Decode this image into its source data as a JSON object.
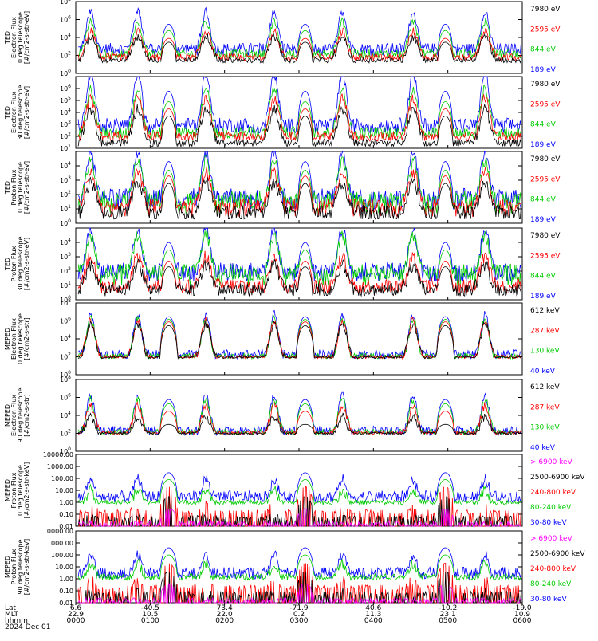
{
  "chart_data": [
    {
      "type": "line",
      "ylabel": [
        "TED",
        "Electron Flux",
        "0 deg telescope",
        "[#/cm2-s-str-eV]"
      ],
      "yscale": "log",
      "ylim": [
        1,
        100000000
      ],
      "ticks": [
        {
          "b": "10",
          "e": "0"
        },
        {
          "b": "10",
          "e": "2"
        },
        {
          "b": "10",
          "e": "4"
        },
        {
          "b": "10",
          "e": "6"
        },
        {
          "b": "10",
          "e": "8"
        }
      ],
      "legend": [
        {
          "label": "7980 eV",
          "color": "#000000"
        },
        {
          "label": "2595 eV",
          "color": "#ff0000"
        },
        {
          "label": "844 eV",
          "color": "#00cc00"
        },
        {
          "label": "189 eV",
          "color": "#0000ff"
        }
      ],
      "series": [
        {
          "color": "#0000ff",
          "baseline": 600,
          "peak": 300000,
          "floor": 100,
          "noise": 1.2
        },
        {
          "color": "#00cc00",
          "baseline": 150,
          "peak": 60000,
          "floor": 80,
          "noise": 1.0
        },
        {
          "color": "#ff0000",
          "baseline": 60,
          "peak": 8000,
          "floor": 40,
          "noise": 0.8
        },
        {
          "color": "#000000",
          "baseline": 30,
          "peak": 3000,
          "floor": 20,
          "noise": 0.6
        }
      ]
    },
    {
      "type": "line",
      "ylabel": [
        "TED",
        "Electron Flux",
        "30 deg telescope",
        "[#/cm2-s-str-eV]"
      ],
      "yscale": "log",
      "ylim": [
        10,
        10000000
      ],
      "ticks": [
        {
          "b": "10",
          "e": "1"
        },
        {
          "b": "10",
          "e": "2"
        },
        {
          "b": "10",
          "e": "3"
        },
        {
          "b": "10",
          "e": "4"
        },
        {
          "b": "10",
          "e": "5"
        },
        {
          "b": "10",
          "e": "6"
        }
      ],
      "legend": [
        {
          "label": "7980 eV",
          "color": "#000000"
        },
        {
          "label": "2595 eV",
          "color": "#ff0000"
        },
        {
          "label": "844 eV",
          "color": "#00cc00"
        },
        {
          "label": "189 eV",
          "color": "#0000ff"
        }
      ],
      "series": [
        {
          "color": "#0000ff",
          "baseline": 900,
          "peak": 600000,
          "floor": 200,
          "noise": 1.2
        },
        {
          "color": "#00cc00",
          "baseline": 200,
          "peak": 80000,
          "floor": 100,
          "noise": 1.0
        },
        {
          "color": "#ff0000",
          "baseline": 100,
          "peak": 20000,
          "floor": 50,
          "noise": 0.8
        },
        {
          "color": "#000000",
          "baseline": 30,
          "peak": 5000,
          "floor": 15,
          "noise": 0.6
        }
      ]
    },
    {
      "type": "line",
      "ylabel": [
        "TED",
        "Proton Flux",
        "0 deg telescope",
        "[#/cm2-s-str-eV]"
      ],
      "yscale": "log",
      "ylim": [
        1,
        100000
      ],
      "ticks": [
        {
          "b": "10",
          "e": "0"
        },
        {
          "b": "10",
          "e": "1"
        },
        {
          "b": "10",
          "e": "2"
        },
        {
          "b": "10",
          "e": "3"
        },
        {
          "b": "10",
          "e": "4"
        }
      ],
      "legend": [
        {
          "label": "7980 eV",
          "color": "#000000"
        },
        {
          "label": "2595 eV",
          "color": "#ff0000"
        },
        {
          "label": "844 eV",
          "color": "#00cc00"
        },
        {
          "label": "189 eV",
          "color": "#0000ff"
        }
      ],
      "series": [
        {
          "color": "#0000ff",
          "baseline": 60,
          "peak": 20000,
          "floor": 10,
          "noise": 1.3
        },
        {
          "color": "#00cc00",
          "baseline": 40,
          "peak": 5000,
          "floor": 5,
          "noise": 1.3
        },
        {
          "color": "#ff0000",
          "baseline": 15,
          "peak": 2000,
          "floor": 3,
          "noise": 1.0
        },
        {
          "color": "#000000",
          "baseline": 6,
          "peak": 600,
          "floor": 2,
          "noise": 1.0
        }
      ]
    },
    {
      "type": "line",
      "ylabel": [
        "TED",
        "Proton Flux",
        "30 deg telescope",
        "[#/cm2-s-str-eV]"
      ],
      "yscale": "log",
      "ylim": [
        1,
        100000
      ],
      "ticks": [
        {
          "b": "10",
          "e": "0"
        },
        {
          "b": "10",
          "e": "1"
        },
        {
          "b": "10",
          "e": "2"
        },
        {
          "b": "10",
          "e": "3"
        },
        {
          "b": "10",
          "e": "4"
        }
      ],
      "legend": [
        {
          "label": "7980 eV",
          "color": "#000000"
        },
        {
          "label": "2595 eV",
          "color": "#ff0000"
        },
        {
          "label": "844 eV",
          "color": "#00cc00"
        },
        {
          "label": "189 eV",
          "color": "#0000ff"
        }
      ],
      "series": [
        {
          "color": "#0000ff",
          "baseline": 100,
          "peak": 10000,
          "floor": 20,
          "noise": 1.2
        },
        {
          "color": "#00cc00",
          "baseline": 80,
          "peak": 3000,
          "floor": 10,
          "noise": 1.2
        },
        {
          "color": "#ff0000",
          "baseline": 10,
          "peak": 500,
          "floor": 3,
          "noise": 1.0
        },
        {
          "color": "#000000",
          "baseline": 5,
          "peak": 200,
          "floor": 2,
          "noise": 0.9
        }
      ]
    },
    {
      "type": "line",
      "ylabel": [
        "MEPED",
        "Electron Flux",
        "0 deg telescope",
        "[#/cm2-s-str]"
      ],
      "yscale": "log",
      "ylim": [
        1,
        100000000
      ],
      "ticks": [
        {
          "b": "10",
          "e": "0"
        },
        {
          "b": "10",
          "e": "2"
        },
        {
          "b": "10",
          "e": "4"
        },
        {
          "b": "10",
          "e": "6"
        },
        {
          "b": "10",
          "e": "8"
        }
      ],
      "legend": [
        {
          "label": "612 keV",
          "color": "#000000"
        },
        {
          "label": "287 keV",
          "color": "#ff0000"
        },
        {
          "label": "130 keV",
          "color": "#00cc00"
        },
        {
          "label": "40 keV",
          "color": "#0000ff"
        }
      ],
      "series": [
        {
          "color": "#0000ff",
          "baseline": 200,
          "peak": 3000000,
          "floor": 100,
          "noise": 1.0
        },
        {
          "color": "#00cc00",
          "baseline": 120,
          "peak": 1500000,
          "floor": 80,
          "noise": 0.6
        },
        {
          "color": "#ff0000",
          "baseline": 100,
          "peak": 800000,
          "floor": 80,
          "noise": 0.4
        },
        {
          "color": "#000000",
          "baseline": 90,
          "peak": 300000,
          "floor": 80,
          "noise": 0.3
        }
      ]
    },
    {
      "type": "line",
      "ylabel": [
        "MEPED",
        "Electron Flux",
        "90 deg telescope",
        "[#/cm2-s-str]"
      ],
      "yscale": "log",
      "ylim": [
        1,
        100000000
      ],
      "ticks": [
        {
          "b": "10",
          "e": "0"
        },
        {
          "b": "10",
          "e": "2"
        },
        {
          "b": "10",
          "e": "4"
        },
        {
          "b": "10",
          "e": "6"
        },
        {
          "b": "10",
          "e": "8"
        }
      ],
      "legend": [
        {
          "label": "612 keV",
          "color": "#000000"
        },
        {
          "label": "287 keV",
          "color": "#ff0000"
        },
        {
          "label": "130 keV",
          "color": "#00cc00"
        },
        {
          "label": "40 keV",
          "color": "#0000ff"
        }
      ],
      "series": [
        {
          "color": "#0000ff",
          "baseline": 200,
          "peak": 600000,
          "floor": 100,
          "noise": 1.0
        },
        {
          "color": "#00cc00",
          "baseline": 150,
          "peak": 200000,
          "floor": 100,
          "noise": 0.6
        },
        {
          "color": "#ff0000",
          "baseline": 120,
          "peak": 30000,
          "floor": 100,
          "noise": 0.4
        },
        {
          "color": "#000000",
          "baseline": 100,
          "peak": 1000,
          "floor": 100,
          "noise": 0.3
        }
      ]
    },
    {
      "type": "line",
      "ylabel": [
        "MEPED",
        "Proton Flux",
        "0 deg telescope",
        "[#/cm2-s-str-keV]"
      ],
      "yscale": "log",
      "ylim": [
        0.01,
        10000
      ],
      "ticks": [
        {
          "b": "0.01"
        },
        {
          "b": "0.10"
        },
        {
          "b": "1.00"
        },
        {
          "b": "10.00"
        },
        {
          "b": "100.00"
        },
        {
          "b": "1000.00"
        },
        {
          "b": "10000.00"
        }
      ],
      "legend": [
        {
          "label": "> 6900 keV",
          "color": "#ff00ff"
        },
        {
          "label": "2500-6900 keV",
          "color": "#000000"
        },
        {
          "label": "240-800 keV",
          "color": "#ff0000"
        },
        {
          "label": "80-240 keV",
          "color": "#00cc00"
        },
        {
          "label": "30-80 keV",
          "color": "#0000ff"
        }
      ],
      "series": [
        {
          "color": "#0000ff",
          "baseline": 3,
          "peak": 300,
          "floor": 1.5,
          "noise": 1.0
        },
        {
          "color": "#00cc00",
          "baseline": 1,
          "peak": 80,
          "floor": 0.8,
          "noise": 0.4
        },
        {
          "color": "#ff0000",
          "baseline": 0.15,
          "peak": 20,
          "floor": 0.1,
          "noise": 0.4
        },
        {
          "color": "#000000",
          "baseline": 0.05,
          "peak": 3,
          "floor": 0.03,
          "noise": 0.4
        },
        {
          "color": "#ff00ff",
          "baseline": 0.02,
          "peak": 0.3,
          "floor": 0.015,
          "noise": 0.3
        }
      ]
    },
    {
      "type": "line",
      "ylabel": [
        "MEPED",
        "Proton Flux",
        "90 deg telescope",
        "[#/cm2-s-str-keV]"
      ],
      "yscale": "log",
      "ylim": [
        0.01,
        10000
      ],
      "ticks": [
        {
          "b": "0.01"
        },
        {
          "b": "0.10"
        },
        {
          "b": "1.00"
        },
        {
          "b": "10.00"
        },
        {
          "b": "100.00"
        },
        {
          "b": "1000.00"
        },
        {
          "b": "10000.00"
        }
      ],
      "legend": [
        {
          "label": "> 6900 keV",
          "color": "#ff00ff"
        },
        {
          "label": "2500-6900 keV",
          "color": "#000000"
        },
        {
          "label": "240-800 keV",
          "color": "#ff0000"
        },
        {
          "label": "80-240 keV",
          "color": "#00cc00"
        },
        {
          "label": "30-80 keV",
          "color": "#0000ff"
        }
      ],
      "series": [
        {
          "color": "#0000ff",
          "baseline": 3,
          "peak": 400,
          "floor": 1.5,
          "noise": 1.0
        },
        {
          "color": "#00cc00",
          "baseline": 1.5,
          "peak": 100,
          "floor": 0.8,
          "noise": 0.5
        },
        {
          "color": "#ff0000",
          "baseline": 0.2,
          "peak": 20,
          "floor": 0.1,
          "noise": 0.4
        },
        {
          "color": "#000000",
          "baseline": 0.06,
          "peak": 4,
          "floor": 0.03,
          "noise": 0.4
        },
        {
          "color": "#ff00ff",
          "baseline": 0.02,
          "peak": 0.4,
          "floor": 0.015,
          "noise": 0.3
        }
      ]
    }
  ],
  "time_axis": {
    "row_labels": [
      "Lat",
      "MLT",
      "hhmm",
      "2024 Dec 01"
    ],
    "xlim": [
      0,
      360
    ],
    "ticks": [
      {
        "t": 0,
        "lat": "6.6",
        "mlt": "22.9",
        "hhmm": "0000"
      },
      {
        "t": 60,
        "lat": "-40.5",
        "mlt": "10.5",
        "hhmm": "0100"
      },
      {
        "t": 120,
        "lat": "73.4",
        "mlt": "22.0",
        "hhmm": "0200"
      },
      {
        "t": 180,
        "lat": "-71.9",
        "mlt": "0.2",
        "hhmm": "0300"
      },
      {
        "t": 240,
        "lat": "40.6",
        "mlt": "11.3",
        "hhmm": "0400"
      },
      {
        "t": 300,
        "lat": "-10.2",
        "mlt": "23.1",
        "hhmm": "0500"
      },
      {
        "t": 360,
        "lat": "-19.0",
        "mlt": "10.9",
        "hhmm": "0600"
      }
    ],
    "events": [
      {
        "t": 12,
        "kind": "aurora"
      },
      {
        "t": 50,
        "kind": "aurora"
      },
      {
        "t": 105,
        "kind": "aurora"
      },
      {
        "t": 160,
        "kind": "aurora"
      },
      {
        "t": 215,
        "kind": "aurora"
      },
      {
        "t": 272,
        "kind": "aurora"
      },
      {
        "t": 330,
        "kind": "aurora"
      },
      {
        "t": 75,
        "kind": "belt"
      },
      {
        "t": 185,
        "kind": "belt"
      },
      {
        "t": 298,
        "kind": "belt"
      }
    ]
  }
}
